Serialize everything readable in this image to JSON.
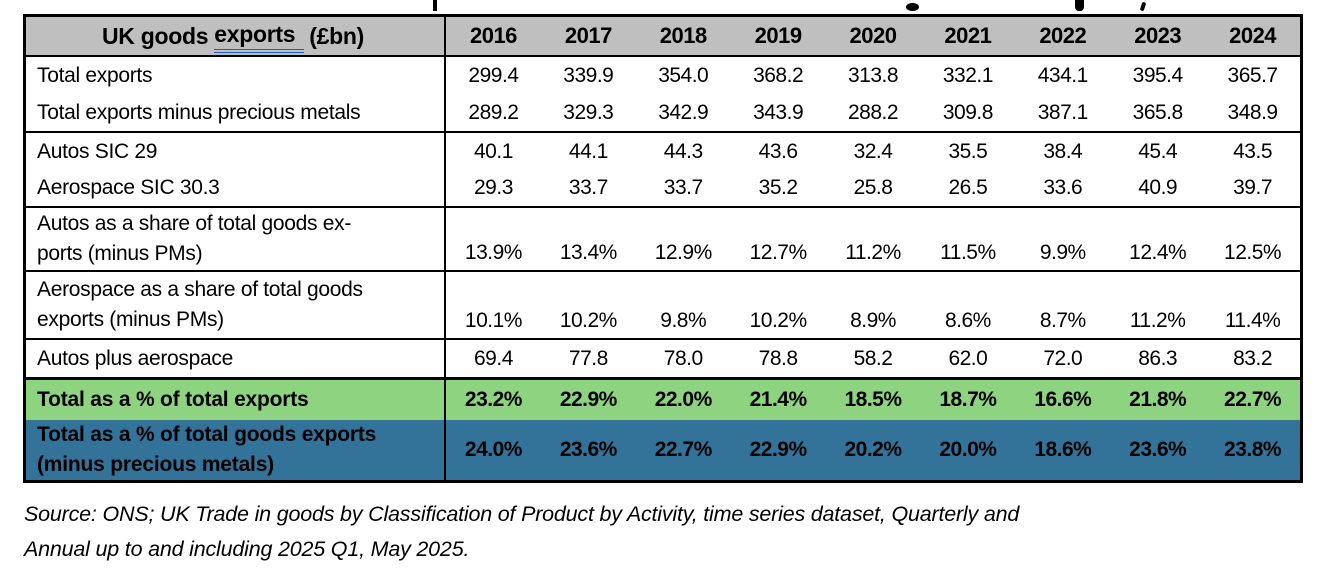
{
  "table": {
    "header": {
      "label_prefix": "UK goods ",
      "label_underlined": "exports",
      "label_suffix": "(£bn)",
      "years": [
        "2016",
        "2017",
        "2018",
        "2019",
        "2020",
        "2021",
        "2022",
        "2023",
        "2024"
      ]
    },
    "colors": {
      "header_bg": "#bfbfbf",
      "green_row_bg": "#8ed37f",
      "blue_row_bg": "#337399",
      "grammar_underline_blue": "#2653c9",
      "border": "#000000"
    },
    "rows": [
      {
        "id": "total-exports",
        "label_lines": [
          "Total exports"
        ],
        "values": [
          "299.4",
          "339.9",
          "354.0",
          "368.2",
          "313.8",
          "332.1",
          "434.1",
          "395.4",
          "365.7"
        ],
        "style": "normal",
        "valign": "middle",
        "group_end": false
      },
      {
        "id": "total-exports-minus-precious-metals",
        "label_lines": [
          "Total exports minus precious metals"
        ],
        "values": [
          "289.2",
          "329.3",
          "342.9",
          "343.9",
          "288.2",
          "309.8",
          "387.1",
          "365.8",
          "348.9"
        ],
        "style": "normal",
        "valign": "middle",
        "group_end": true
      },
      {
        "id": "autos-sic-29",
        "label_lines": [
          "Autos SIC 29"
        ],
        "values": [
          "40.1",
          "44.1",
          "44.3",
          "43.6",
          "32.4",
          "35.5",
          "38.4",
          "45.4",
          "43.5"
        ],
        "style": "normal",
        "valign": "middle",
        "group_end": false
      },
      {
        "id": "aerospace-sic-30-3",
        "label_lines": [
          "Aerospace SIC 30.3"
        ],
        "values": [
          "29.3",
          "33.7",
          "33.7",
          "35.2",
          "25.8",
          "26.5",
          "33.6",
          "40.9",
          "39.7"
        ],
        "style": "normal",
        "valign": "middle",
        "group_end": true
      },
      {
        "id": "autos-share-of-goods-exports",
        "label_lines": [
          "Autos as a share of total goods ex-",
          "ports (minus PMs)"
        ],
        "values": [
          "13.9%",
          "13.4%",
          "12.9%",
          "12.7%",
          "11.2%",
          "11.5%",
          "9.9%",
          "12.4%",
          "12.5%"
        ],
        "style": "normal",
        "valign": "bottom",
        "group_end": true
      },
      {
        "id": "aerospace-share-of-goods-exports",
        "label_lines": [
          "Aerospace as a share of total goods",
          "exports (minus PMs)"
        ],
        "values": [
          "10.1%",
          "10.2%",
          "9.8%",
          "10.2%",
          "8.9%",
          "8.6%",
          "8.7%",
          "11.2%",
          "11.4%"
        ],
        "style": "normal",
        "valign": "bottom",
        "group_end": true
      },
      {
        "id": "autos-plus-aerospace",
        "label_lines": [
          "Autos plus aerospace"
        ],
        "values": [
          "69.4",
          "77.8",
          "78.0",
          "78.8",
          "58.2",
          "62.0",
          "72.0",
          "86.3",
          "83.2"
        ],
        "style": "normal",
        "valign": "middle",
        "group_end": "thick"
      },
      {
        "id": "total-pct-of-total-exports",
        "label_lines": [
          "Total as a % of total exports"
        ],
        "values": [
          "23.2%",
          "22.9%",
          "22.0%",
          "21.4%",
          "18.5%",
          "18.7%",
          "16.6%",
          "21.8%",
          "22.7%"
        ],
        "style": "green",
        "valign": "middle",
        "group_end": false
      },
      {
        "id": "total-pct-of-goods-exports-minus-pm",
        "label_lines": [
          "Total as a % of total goods exports",
          "(minus precious metals)"
        ],
        "values": [
          "24.0%",
          "23.6%",
          "22.7%",
          "22.9%",
          "20.2%",
          "20.0%",
          "18.6%",
          "23.6%",
          "23.8%"
        ],
        "style": "blue",
        "valign": "middle",
        "group_end": false
      }
    ]
  },
  "source_note": {
    "line1": "Source: ONS; UK Trade in goods by Classification of Product by Activity, time series dataset, Quarterly and",
    "line2": "Annual up to and including 2025 Q1, May 2025."
  }
}
